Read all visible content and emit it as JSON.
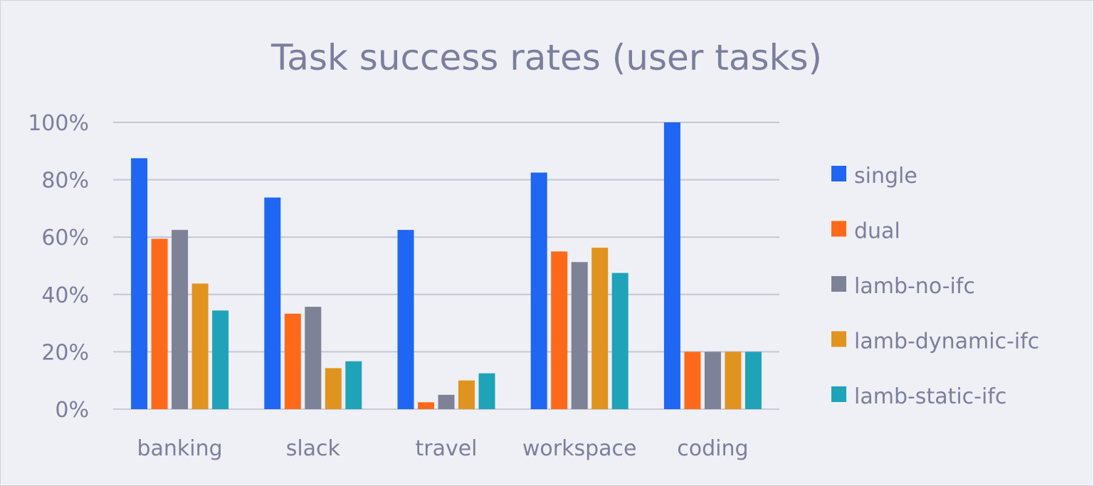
{
  "chart_data": {
    "type": "bar",
    "title": "Task success rates (user tasks)",
    "xlabel": "",
    "ylabel": "",
    "categories": [
      "banking",
      "slack",
      "travel",
      "workspace",
      "coding"
    ],
    "ylim": [
      0,
      100
    ],
    "y_ticks": [
      "0%",
      "20%",
      "40%",
      "60%",
      "80%",
      "100%"
    ],
    "grid": true,
    "legend_position": "right",
    "series": [
      {
        "name": "single",
        "color": "#1f66f2",
        "values": [
          87.5,
          73.8,
          62.5,
          82.5,
          100
        ]
      },
      {
        "name": "dual",
        "color": "#ff6a1a",
        "values": [
          59.4,
          33.3,
          2.4,
          55.0,
          20
        ]
      },
      {
        "name": "lamb-no-ifc",
        "color": "#7e8296",
        "values": [
          62.5,
          35.7,
          5.0,
          51.3,
          20
        ]
      },
      {
        "name": "lamb-dynamic-ifc",
        "color": "#e1931f",
        "values": [
          43.8,
          14.3,
          10.0,
          56.3,
          20
        ]
      },
      {
        "name": "lamb-static-ifc",
        "color": "#1fa3b8",
        "values": [
          34.4,
          16.7,
          12.5,
          47.5,
          20
        ]
      }
    ]
  }
}
